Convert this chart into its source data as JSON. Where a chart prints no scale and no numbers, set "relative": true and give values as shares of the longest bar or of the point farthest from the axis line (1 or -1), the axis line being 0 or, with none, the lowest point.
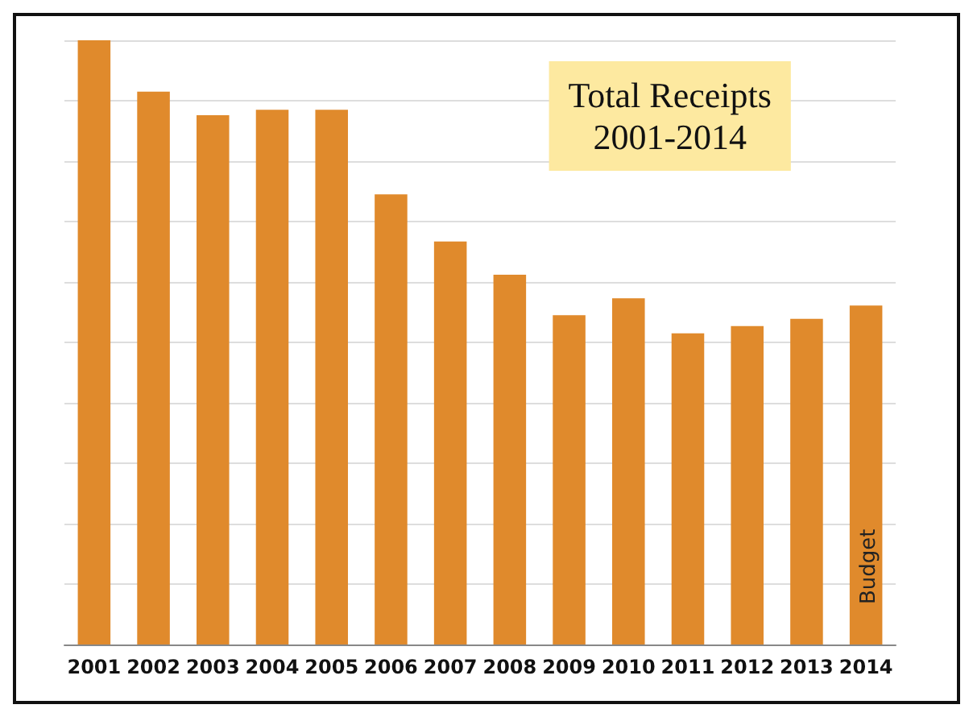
{
  "chart_data": {
    "type": "bar",
    "title": "Total Receipts\n2001-2014",
    "categories": [
      "2001",
      "2002",
      "2003",
      "2004",
      "2005",
      "2006",
      "2007",
      "2008",
      "2009",
      "2010",
      "2011",
      "2012",
      "2013",
      "2014"
    ],
    "values": [
      1,
      0.915,
      0.876,
      0.885,
      0.885,
      0.745,
      0.667,
      0.612,
      0.545,
      0.573,
      0.515,
      0.527,
      0.539,
      0.561
    ],
    "color": "#e08a2c",
    "relative": true,
    "grid": "y",
    "annotations": [
      "Budget"
    ]
  }
}
